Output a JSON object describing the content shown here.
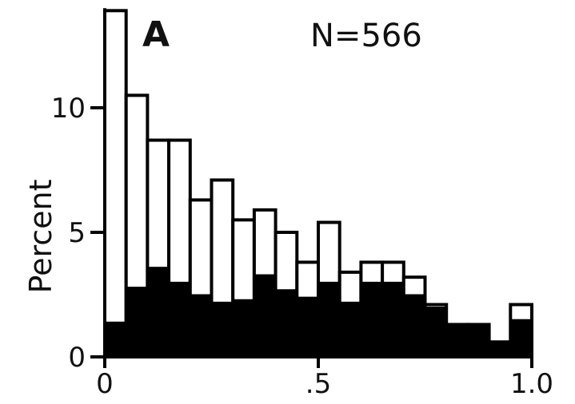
{
  "chart_data": {
    "type": "bar",
    "panel_label": "A",
    "annotation": "N=566",
    "ylabel": "Percent",
    "xlabel": "",
    "xlim": [
      0,
      1.0
    ],
    "ylim": [
      0,
      14
    ],
    "bin_width": 0.05,
    "x_tick_values": [
      0,
      0.5,
      1.0
    ],
    "x_tick_labels": [
      "0",
      ".5",
      "1.0"
    ],
    "y_tick_values": [
      0,
      5,
      10
    ],
    "y_tick_labels": [
      "0",
      "5",
      "10"
    ],
    "grid": false,
    "legend": "none",
    "x": [
      0.025,
      0.075,
      0.125,
      0.175,
      0.225,
      0.275,
      0.325,
      0.375,
      0.425,
      0.475,
      0.525,
      0.575,
      0.625,
      0.675,
      0.725,
      0.775,
      0.825,
      0.875,
      0.925,
      0.975
    ],
    "series": [
      {
        "style": "open",
        "color": "#ffffff",
        "values": [
          13.9,
          10.5,
          8.7,
          8.7,
          6.3,
          7.1,
          5.5,
          5.9,
          5.0,
          3.8,
          5.4,
          3.4,
          3.8,
          3.8,
          3.2,
          2.1,
          1.3,
          1.3,
          0.6,
          2.1
        ]
      },
      {
        "style": "filled",
        "color": "#000000",
        "values": [
          1.4,
          2.8,
          3.6,
          3.0,
          2.5,
          2.2,
          2.3,
          3.3,
          2.7,
          2.4,
          3.0,
          2.2,
          3.0,
          3.0,
          2.5,
          2.0,
          1.3,
          1.3,
          0.6,
          1.5
        ]
      }
    ]
  }
}
